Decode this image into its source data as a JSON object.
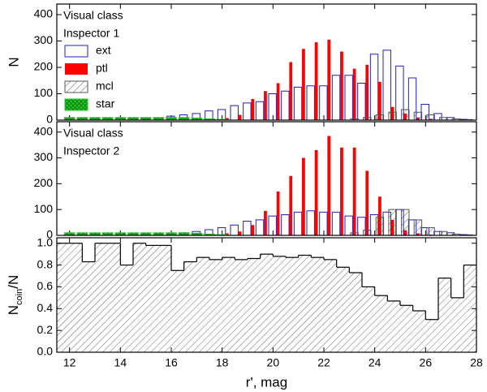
{
  "chart_data": [
    {
      "type": "bar",
      "annotations": [
        "Visual class",
        "Inspector 1"
      ],
      "ylabel": "N",
      "legend": "upper left",
      "x": [
        12,
        12.5,
        13,
        13.5,
        14,
        14.5,
        15,
        15.5,
        16,
        16.5,
        17,
        17.5,
        18,
        18.5,
        19,
        19.5,
        20,
        20.5,
        21,
        21.5,
        22,
        22.5,
        23,
        23.5,
        24,
        24.5,
        25,
        25.5,
        26,
        26.5,
        27,
        27.5
      ],
      "xlim": [
        11.5,
        28
      ],
      "ylim": [
        0,
        440
      ],
      "yticks": [
        0,
        100,
        200,
        300,
        400
      ],
      "series": [
        {
          "name": "ext",
          "color": "#1f1fbf",
          "style": "open",
          "values": [
            5,
            5,
            5,
            5,
            5,
            5,
            8,
            8,
            15,
            20,
            25,
            35,
            40,
            55,
            65,
            70,
            100,
            110,
            125,
            130,
            130,
            170,
            170,
            140,
            250,
            265,
            205,
            160,
            60,
            25,
            10,
            3
          ]
        },
        {
          "name": "ptl",
          "color": "#ff0000",
          "style": "solid",
          "values": [
            0,
            0,
            0,
            0,
            0,
            0,
            0,
            0,
            0,
            0,
            0,
            3,
            8,
            20,
            80,
            110,
            140,
            220,
            270,
            295,
            305,
            260,
            195,
            210,
            145,
            50,
            25,
            10,
            5,
            0,
            0,
            0
          ]
        },
        {
          "name": "mcl",
          "color": "#555555",
          "style": "hatch",
          "values": [
            0,
            0,
            0,
            0,
            0,
            0,
            0,
            0,
            0,
            0,
            0,
            0,
            0,
            0,
            0,
            0,
            0,
            0,
            0,
            0,
            0,
            0,
            5,
            10,
            20,
            30,
            40,
            30,
            20,
            10,
            5,
            2
          ]
        },
        {
          "name": "star",
          "color": "#22cc22",
          "style": "crosshatch",
          "values": [
            10,
            10,
            10,
            10,
            10,
            10,
            10,
            10,
            10,
            10,
            8,
            5,
            3,
            0,
            0,
            0,
            0,
            0,
            0,
            0,
            0,
            0,
            0,
            0,
            0,
            0,
            0,
            0,
            0,
            0,
            0,
            0
          ]
        }
      ]
    },
    {
      "type": "bar",
      "annotations": [
        "Visual class",
        "Inspector 2"
      ],
      "x": [
        12,
        12.5,
        13,
        13.5,
        14,
        14.5,
        15,
        15.5,
        16,
        16.5,
        17,
        17.5,
        18,
        18.5,
        19,
        19.5,
        20,
        20.5,
        21,
        21.5,
        22,
        22.5,
        23,
        23.5,
        24,
        24.5,
        25,
        25.5,
        26,
        26.5,
        27,
        27.5
      ],
      "xlim": [
        11.5,
        28
      ],
      "ylim": [
        0,
        440
      ],
      "yticks": [
        0,
        100,
        200,
        300,
        400
      ],
      "series": [
        {
          "name": "ext",
          "color": "#1f1fbf",
          "style": "open",
          "values": [
            5,
            5,
            5,
            5,
            5,
            5,
            5,
            5,
            8,
            10,
            15,
            22,
            30,
            40,
            55,
            60,
            75,
            80,
            90,
            95,
            90,
            90,
            75,
            70,
            80,
            90,
            100,
            60,
            30,
            15,
            10,
            3
          ]
        },
        {
          "name": "ptl",
          "color": "#ff0000",
          "style": "solid",
          "values": [
            0,
            0,
            0,
            0,
            0,
            0,
            0,
            0,
            0,
            0,
            0,
            3,
            8,
            15,
            40,
            95,
            170,
            230,
            300,
            330,
            385,
            340,
            340,
            250,
            150,
            60,
            20,
            8,
            3,
            0,
            0,
            0
          ]
        },
        {
          "name": "mcl",
          "color": "#555555",
          "style": "hatch",
          "values": [
            0,
            0,
            0,
            0,
            0,
            0,
            0,
            0,
            0,
            0,
            0,
            0,
            0,
            0,
            0,
            0,
            0,
            0,
            0,
            0,
            0,
            0,
            10,
            20,
            70,
            100,
            100,
            60,
            30,
            15,
            5,
            2
          ]
        },
        {
          "name": "star",
          "color": "#22cc22",
          "style": "crosshatch",
          "values": [
            10,
            10,
            10,
            10,
            10,
            10,
            10,
            10,
            10,
            10,
            8,
            5,
            3,
            0,
            0,
            0,
            0,
            0,
            0,
            0,
            0,
            0,
            0,
            0,
            0,
            0,
            0,
            0,
            0,
            0,
            0,
            0
          ]
        }
      ]
    },
    {
      "type": "histogram",
      "ylabel_parts": [
        "N",
        "coin",
        "/N"
      ],
      "xlabel": "r', mag",
      "bins": [
        11.5,
        12,
        12.5,
        13,
        13.5,
        14,
        14.5,
        15,
        15.5,
        16,
        16.5,
        17,
        17.5,
        18,
        18.5,
        19,
        19.5,
        20,
        20.5,
        21,
        21.5,
        22,
        22.5,
        23,
        23.5,
        24,
        24.5,
        25,
        25.5,
        26,
        26.5,
        27,
        27.5,
        28
      ],
      "values": [
        1.0,
        1.0,
        0.83,
        1.0,
        1.0,
        0.8,
        1.0,
        0.98,
        0.98,
        0.75,
        0.83,
        0.87,
        0.85,
        0.87,
        0.85,
        0.86,
        0.9,
        0.88,
        0.87,
        0.89,
        0.87,
        0.85,
        0.78,
        0.73,
        0.6,
        0.52,
        0.47,
        0.43,
        0.38,
        0.3,
        0.68,
        0.5,
        0.8
      ],
      "color": "#000000",
      "xlim": [
        11.5,
        28
      ],
      "ylim": [
        0,
        1.05
      ],
      "xticks": [
        12,
        14,
        16,
        18,
        20,
        22,
        24,
        26,
        28
      ],
      "yticks": [
        {
          "value": 0,
          "label": "0.0"
        },
        {
          "value": 0.2,
          "label": "0.2"
        },
        {
          "value": 0.4,
          "label": "0.4"
        },
        {
          "value": 0.6,
          "label": "0.6"
        },
        {
          "value": 0.8,
          "label": "0.8"
        },
        {
          "value": 1,
          "label": "1.0"
        }
      ]
    }
  ]
}
